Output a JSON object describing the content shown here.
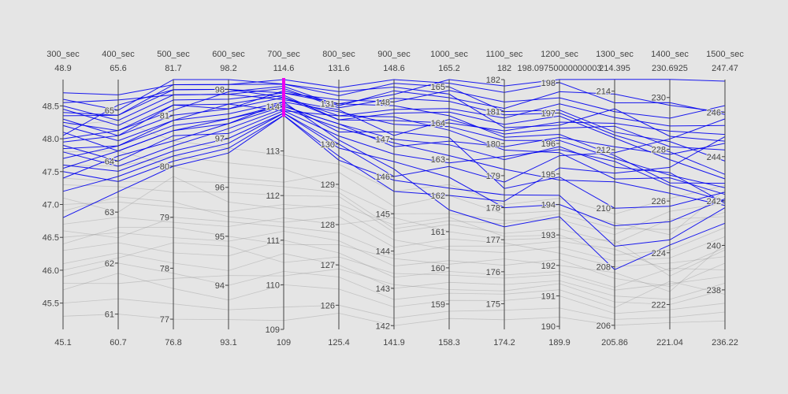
{
  "chart_data": {
    "type": "parallel_coordinates",
    "axes": [
      {
        "name": "300_sec",
        "header_value": "48.9",
        "min_label": "45.1",
        "ticks": [
          45.5,
          46.0,
          46.5,
          47.0,
          47.5,
          48.0,
          48.5
        ],
        "tick_labels": [
          "45.5",
          "46.0",
          "46.5",
          "47.0",
          "47.5",
          "48.0",
          "48.5"
        ],
        "range": [
          45.1,
          48.9
        ]
      },
      {
        "name": "400_sec",
        "header_value": "65.6",
        "min_label": "60.7",
        "ticks": [
          61,
          62,
          63,
          64,
          65
        ],
        "tick_labels": [
          "61",
          "62",
          "63",
          "64",
          "65"
        ],
        "range": [
          60.7,
          65.6
        ]
      },
      {
        "name": "500_sec",
        "header_value": "81.7",
        "min_label": "76.8",
        "ticks": [
          77,
          78,
          79,
          80,
          81
        ],
        "tick_labels": [
          "77",
          "78",
          "79",
          "80",
          "81"
        ],
        "range": [
          76.8,
          81.7
        ]
      },
      {
        "name": "600_sec",
        "header_value": "98.2",
        "min_label": "93.1",
        "ticks": [
          94,
          95,
          96,
          97,
          98
        ],
        "tick_labels": [
          "94",
          "95",
          "96",
          "97",
          "98"
        ],
        "range": [
          93.1,
          98.2
        ]
      },
      {
        "name": "700_sec",
        "header_value": "114.6",
        "min_label": "109",
        "ticks": [
          109,
          110,
          111,
          112,
          113,
          114
        ],
        "tick_labels": [
          "109",
          "110",
          "111",
          "112",
          "113",
          "114"
        ],
        "range": [
          109,
          114.6
        ]
      },
      {
        "name": "800_sec",
        "header_value": "131.6",
        "min_label": "125.4",
        "ticks": [
          126,
          127,
          128,
          129,
          130,
          131
        ],
        "tick_labels": [
          "126",
          "127",
          "128",
          "129",
          "130",
          "131"
        ],
        "range": [
          125.4,
          131.6
        ]
      },
      {
        "name": "900_sec",
        "header_value": "148.6",
        "min_label": "141.9",
        "ticks": [
          142,
          143,
          144,
          145,
          146,
          147,
          148
        ],
        "tick_labels": [
          "142",
          "143",
          "144",
          "145",
          "146",
          "147",
          "148"
        ],
        "range": [
          141.9,
          148.6
        ]
      },
      {
        "name": "1000_sec",
        "header_value": "165.2",
        "min_label": "158.3",
        "ticks": [
          159,
          160,
          161,
          162,
          163,
          164,
          165
        ],
        "tick_labels": [
          "159",
          "160",
          "161",
          "162",
          "163",
          "164",
          "165"
        ],
        "range": [
          158.3,
          165.2
        ]
      },
      {
        "name": "1100_sec",
        "header_value": "182",
        "min_label": "174.2",
        "ticks": [
          175,
          176,
          177,
          178,
          179,
          180,
          181,
          182
        ],
        "tick_labels": [
          "175",
          "176",
          "177",
          "178",
          "179",
          "180",
          "181",
          "182"
        ],
        "range": [
          174.2,
          182
        ]
      },
      {
        "name": "1200_sec",
        "header_value": "198.09750000000003",
        "min_label": "189.9",
        "ticks": [
          190,
          191,
          192,
          193,
          194,
          195,
          196,
          197,
          198
        ],
        "tick_labels": [
          "190",
          "191",
          "192",
          "193",
          "194",
          "195",
          "196",
          "197",
          "198"
        ],
        "range": [
          189.9,
          198.0975
        ]
      },
      {
        "name": "1300_sec",
        "header_value": "214.395",
        "min_label": "205.86",
        "ticks": [
          206,
          208,
          210,
          212,
          214
        ],
        "tick_labels": [
          "206",
          "208",
          "210",
          "212",
          "214"
        ],
        "range": [
          205.86,
          214.395
        ]
      },
      {
        "name": "1400_sec",
        "header_value": "230.6925",
        "min_label": "221.04",
        "ticks": [
          222,
          224,
          226,
          228,
          230
        ],
        "tick_labels": [
          "222",
          "224",
          "226",
          "228",
          "230"
        ],
        "range": [
          221.04,
          230.6925
        ]
      },
      {
        "name": "1500_sec",
        "header_value": "247.47",
        "min_label": "236.22",
        "ticks": [
          238,
          240,
          242,
          244,
          246
        ],
        "tick_labels": [
          "238",
          "240",
          "242",
          "244",
          "246"
        ],
        "range": [
          236.22,
          247.47
        ]
      }
    ],
    "constraint": {
      "axis": "700_sec",
      "range": [
        113.8,
        114.6
      ]
    },
    "series_selected": [
      [
        48.6,
        65.0,
        81.7,
        98.2,
        114.5,
        131.2,
        148.5,
        165.0,
        181.0,
        197.1,
        212.6,
        228.3,
        243.8
      ],
      [
        48.5,
        64.8,
        81.4,
        97.9,
        114.4,
        130.9,
        148.1,
        164.6,
        180.9,
        197.0,
        212.5,
        227.9,
        243.2
      ],
      [
        48.4,
        64.9,
        81.5,
        98.0,
        114.3,
        131.0,
        147.9,
        164.2,
        180.2,
        196.3,
        211.8,
        226.7,
        242.8
      ],
      [
        48.3,
        64.5,
        81.0,
        97.6,
        114.2,
        130.6,
        147.7,
        164.3,
        180.6,
        196.9,
        212.4,
        227.6,
        243.0
      ],
      [
        48.2,
        64.4,
        80.9,
        97.5,
        114.1,
        130.8,
        147.4,
        163.9,
        180.1,
        196.1,
        211.7,
        227.0,
        242.6
      ],
      [
        48.1,
        64.2,
        80.7,
        97.3,
        114.0,
        130.5,
        147.0,
        163.4,
        179.5,
        195.9,
        211.4,
        227.1,
        241.9
      ],
      [
        48.0,
        64.6,
        81.2,
        97.7,
        113.9,
        130.7,
        147.6,
        163.8,
        179.8,
        195.7,
        211.0,
        226.9,
        242.3
      ],
      [
        47.9,
        64.0,
        80.6,
        97.1,
        113.9,
        130.2,
        146.6,
        162.9,
        179.6,
        195.8,
        211.6,
        226.6,
        242.0
      ],
      [
        47.8,
        63.9,
        80.4,
        97.2,
        113.95,
        130.4,
        146.9,
        163.1,
        179.2,
        194.8,
        210.9,
        226.3,
        241.8
      ],
      [
        47.7,
        64.3,
        80.8,
        97.4,
        114.05,
        130.3,
        147.2,
        163.6,
        178.6,
        194.9,
        210.0,
        225.8,
        242.4
      ],
      [
        47.6,
        63.8,
        80.3,
        97.0,
        113.85,
        129.9,
        146.4,
        162.5,
        178.0,
        194.0,
        209.4,
        225.2,
        242.1
      ],
      [
        47.5,
        63.6,
        80.1,
        96.8,
        113.8,
        129.6,
        145.9,
        162.2,
        178.4,
        194.3,
        208.7,
        224.5,
        241.7
      ],
      [
        47.4,
        64.1,
        80.5,
        97.3,
        114.1,
        130.1,
        146.2,
        161.6,
        177.4,
        193.6,
        207.9,
        224.3,
        241.0
      ],
      [
        48.7,
        65.3,
        81.6,
        98.1,
        114.6,
        131.4,
        148.6,
        165.1,
        181.6,
        198.0,
        213.6,
        229.8,
        245.9
      ],
      [
        48.45,
        64.7,
        81.3,
        97.8,
        114.3,
        131.1,
        148.0,
        164.9,
        181.3,
        197.5,
        213.3,
        229.2,
        246.3
      ],
      [
        48.25,
        64.6,
        81.1,
        97.95,
        114.45,
        130.95,
        148.3,
        164.7,
        181.1,
        197.7,
        213.9,
        229.7,
        246.0
      ],
      [
        48.05,
        65.1,
        81.5,
        98.0,
        114.2,
        130.7,
        147.8,
        164.4,
        180.8,
        197.3,
        213.1,
        228.9,
        245.4
      ],
      [
        47.95,
        64.5,
        81.2,
        97.6,
        114.35,
        131.0,
        148.2,
        165.2,
        181.8,
        198.1,
        214.4,
        230.7,
        247.4
      ],
      [
        48.35,
        64.9,
        81.6,
        98.1,
        114.5,
        131.3,
        148.4,
        164.8,
        180.5,
        196.6,
        213.4,
        228.5,
        244.7
      ],
      [
        47.85,
        64.3,
        80.9,
        97.7,
        114.25,
        130.6,
        147.5,
        164.0,
        180.4,
        196.7,
        212.9,
        228.7,
        245.0
      ],
      [
        48.55,
        65.2,
        81.4,
        97.9,
        114.15,
        130.85,
        147.1,
        164.1,
        180.3,
        196.5,
        212.8,
        228.1,
        244.3
      ],
      [
        47.55,
        64.2,
        80.7,
        97.4,
        114.0,
        130.5,
        146.8,
        163.5,
        179.9,
        196.2,
        212.1,
        227.8,
        244.6
      ],
      [
        47.2,
        63.7,
        80.2,
        96.9,
        113.85,
        130.0,
        146.0,
        162.8,
        178.8,
        195.6,
        211.9,
        228.4,
        245.7
      ],
      [
        46.8,
        63.4,
        80.0,
        96.7,
        113.8,
        129.7,
        145.6,
        162.0,
        178.2,
        195.2,
        211.2,
        227.3,
        244.9
      ]
    ],
    "series_context": [
      [
        47.8,
        64.2,
        80.0,
        96.2,
        112.3,
        129.3,
        145.2,
        162.0,
        177.8,
        193.8,
        209.5,
        224.7,
        242.5
      ],
      [
        47.3,
        63.5,
        79.5,
        95.9,
        112.0,
        128.7,
        144.5,
        161.2,
        177.2,
        193.2,
        208.8,
        225.3,
        241.3
      ],
      [
        47.0,
        63.2,
        79.2,
        95.5,
        111.8,
        128.4,
        144.3,
        160.5,
        176.6,
        192.6,
        208.2,
        223.8,
        240.4
      ],
      [
        46.7,
        62.9,
        78.9,
        95.2,
        111.5,
        128.0,
        144.9,
        161.0,
        177.0,
        192.9,
        208.9,
        223.1,
        239.8
      ],
      [
        46.5,
        62.6,
        78.6,
        94.9,
        111.2,
        127.6,
        143.6,
        160.2,
        176.2,
        192.2,
        207.6,
        222.7,
        239.2
      ],
      [
        46.3,
        62.4,
        78.3,
        94.6,
        111.0,
        127.3,
        143.3,
        159.9,
        175.9,
        191.8,
        207.3,
        223.4,
        238.9
      ],
      [
        46.1,
        62.2,
        78.1,
        94.3,
        110.7,
        127.0,
        143.0,
        159.6,
        175.6,
        191.5,
        207.0,
        222.2,
        238.3
      ],
      [
        45.9,
        62.0,
        77.9,
        94.0,
        110.3,
        126.7,
        142.7,
        159.3,
        175.3,
        191.2,
        206.6,
        222.9,
        237.8
      ],
      [
        45.7,
        61.8,
        77.6,
        93.7,
        110.0,
        126.4,
        142.5,
        159.1,
        175.1,
        191.0,
        206.4,
        221.8,
        237.4
      ],
      [
        45.5,
        61.3,
        77.3,
        93.5,
        109.5,
        126.0,
        142.2,
        158.8,
        174.8,
        190.6,
        206.2,
        221.5,
        237.0
      ],
      [
        45.3,
        61.0,
        77.0,
        93.3,
        109.2,
        125.8,
        142.0,
        158.6,
        174.5,
        190.3,
        206.0,
        221.3,
        236.6
      ],
      [
        47.6,
        63.9,
        80.2,
        96.5,
        112.6,
        128.9,
        145.0,
        161.5,
        177.6,
        193.5,
        209.1,
        225.6,
        241.9
      ],
      [
        47.1,
        63.0,
        79.8,
        95.7,
        111.7,
        128.5,
        144.7,
        161.4,
        177.1,
        193.0,
        208.4,
        224.1,
        240.8
      ],
      [
        46.9,
        63.3,
        79.3,
        95.4,
        111.4,
        128.2,
        144.1,
        160.8,
        176.9,
        192.4,
        208.0,
        223.6,
        239.5
      ],
      [
        46.4,
        62.7,
        78.8,
        95.0,
        110.9,
        127.5,
        143.8,
        160.1,
        176.4,
        192.0,
        207.8,
        222.5,
        240.1
      ],
      [
        46.0,
        62.1,
        78.5,
        94.8,
        110.5,
        127.2,
        143.4,
        159.8,
        175.8,
        191.7,
        207.2,
        222.8,
        238.6
      ],
      [
        45.8,
        61.6,
        77.8,
        94.2,
        110.2,
        126.9,
        143.1,
        159.4,
        175.4,
        191.4,
        206.8,
        222.0,
        238.0
      ],
      [
        48.2,
        64.8,
        80.5,
        96.8,
        112.9,
        129.5,
        145.6,
        162.3,
        178.1,
        194.2,
        209.8,
        226.1,
        242.7
      ],
      [
        47.4,
        63.6,
        79.7,
        96.1,
        112.2,
        128.8,
        144.6,
        161.3,
        177.5,
        193.7,
        209.3,
        224.9,
        241.5
      ],
      [
        46.6,
        62.5,
        79.0,
        95.3,
        111.3,
        127.8,
        143.9,
        160.6,
        176.8,
        192.8,
        208.6,
        223.3,
        239.9
      ]
    ]
  }
}
